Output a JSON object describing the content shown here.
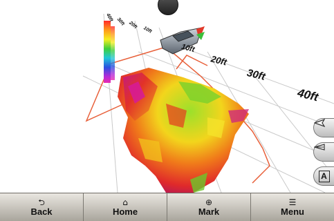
{
  "scale": {
    "near_labels": [
      "10ft",
      "20ft",
      "30ft",
      "40ft"
    ],
    "far_labels": [
      "40ft",
      "30ft",
      "20ft",
      "10ft"
    ]
  },
  "side_buttons": [
    {
      "name": "zoom-out",
      "icon": "view-wide-icon"
    },
    {
      "name": "zoom-in",
      "icon": "view-narrow-icon"
    },
    {
      "name": "auto",
      "glyph": "A"
    }
  ],
  "toolbar": {
    "back_icon": "⮌",
    "back_label": "Back",
    "home_icon": "⌂",
    "home_label": "Home",
    "mark_icon": "⊕",
    "mark_label": "Mark",
    "menu_icon": "☰",
    "menu_label": "Menu"
  },
  "colors": {
    "grid": "#c9c9c9",
    "outline": "#e8603a",
    "toolbar_top": "#e9e6e0",
    "toolbar_bottom": "#a9a59c"
  }
}
